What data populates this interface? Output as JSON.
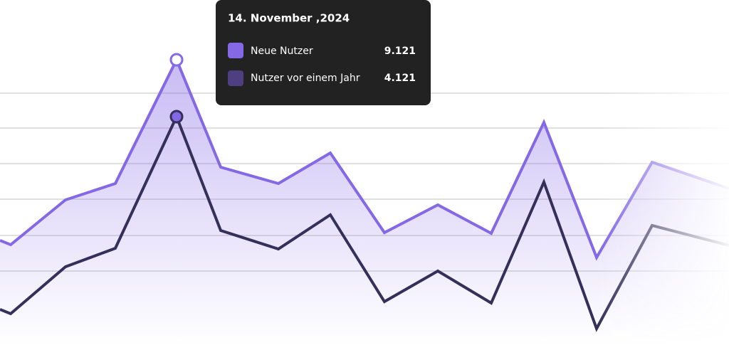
{
  "chart_data": {
    "type": "line",
    "x": [
      0,
      15,
      92,
      162,
      248,
      310,
      391,
      464,
      540,
      615,
      690,
      764,
      838,
      916,
      1024
    ],
    "xlim": [
      0,
      1024
    ],
    "ylim": [
      0,
      485
    ],
    "yticks": [
      104,
      154,
      205,
      255,
      305,
      354
    ],
    "grid": true,
    "series": [
      {
        "name": "Neue Nutzer",
        "color": "#8468e6",
        "values": [
          147,
          141,
          204,
          227,
          401,
          250,
          227,
          270,
          158,
          197,
          157,
          313,
          123,
          257,
          220
        ]
      },
      {
        "name": "Nutzer vor einem Jahr",
        "color": "#35305a",
        "values": [
          50,
          44,
          110,
          136,
          321,
          161,
          135,
          183,
          61,
          104,
          59,
          229,
          23,
          168,
          140
        ]
      }
    ],
    "highlight_index": 4,
    "tooltip": {
      "title": "14. November ,2024",
      "value_labels": [
        "9.121",
        "4.121"
      ]
    }
  }
}
